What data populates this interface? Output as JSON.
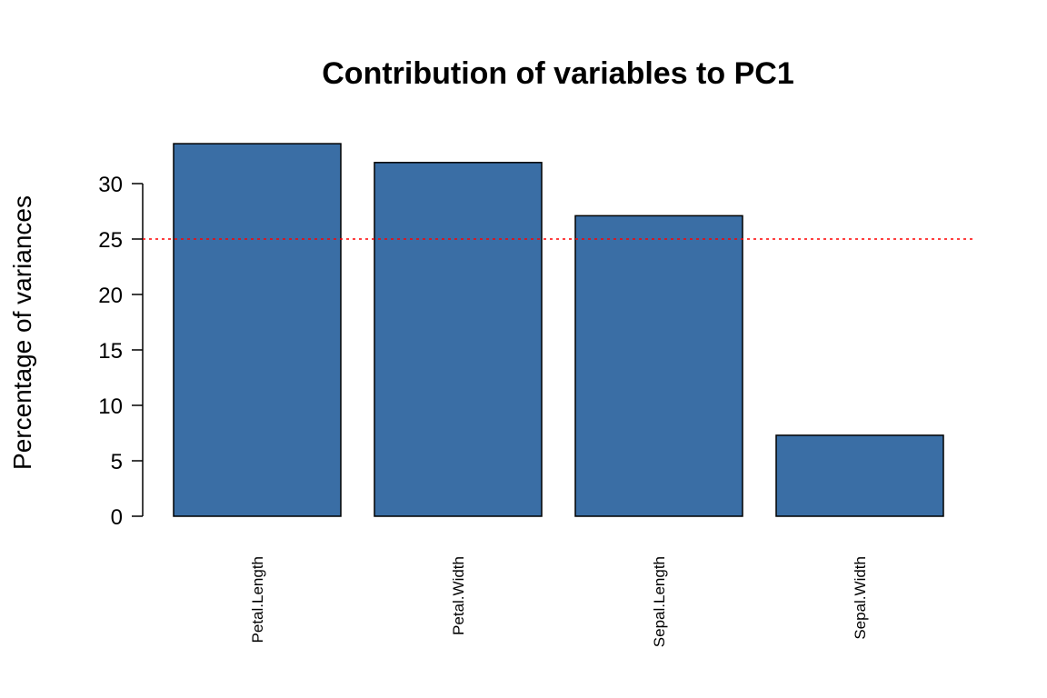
{
  "chart_data": {
    "type": "bar",
    "title": "Contribution of variables to PC1",
    "xlabel": "",
    "ylabel": "Percentage of variances",
    "categories": [
      "Petal.Length",
      "Petal.Width",
      "Sepal.Length",
      "Sepal.Width"
    ],
    "values": [
      33.6,
      31.9,
      27.1,
      7.3
    ],
    "ylim": [
      0,
      33.6
    ],
    "yticks": [
      0,
      5,
      10,
      15,
      20,
      25,
      30
    ],
    "reference_line": {
      "value": 25,
      "style": "dotted",
      "color": "#ff0000"
    },
    "bar_color": "#3a6ea5",
    "bar_border_color": "#000000",
    "x_tick_label_orientation": "vertical",
    "grid": false,
    "legend": "none"
  }
}
